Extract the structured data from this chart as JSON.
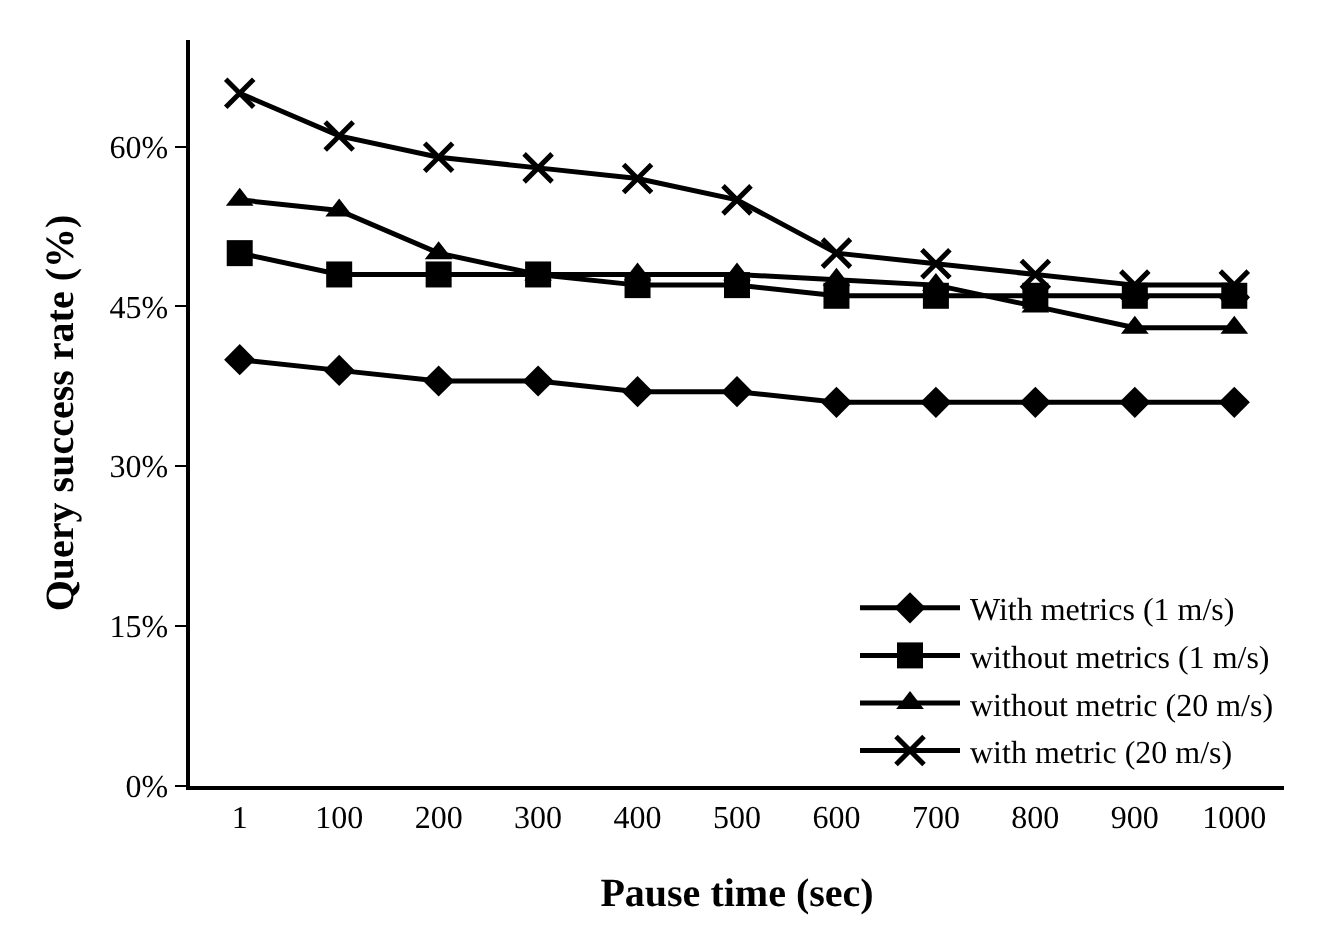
{
  "chart_data": {
    "type": "line",
    "xlabel": "Pause time (sec)",
    "ylabel": "Query success rate (%)",
    "categories": [
      "1",
      "100",
      "200",
      "300",
      "400",
      "500",
      "600",
      "700",
      "800",
      "900",
      "1000"
    ],
    "series": [
      {
        "name": "With metrics (1 m/s)",
        "color": "#000000",
        "marker": "diamond",
        "values": [
          40,
          39,
          38,
          38,
          37,
          37,
          36,
          36,
          36,
          36,
          36
        ]
      },
      {
        "name": "without metrics (1 m/s)",
        "color": "#000000",
        "marker": "square",
        "values": [
          50,
          48,
          48,
          48,
          47,
          47,
          46,
          46,
          46,
          46,
          46
        ]
      },
      {
        "name": "without metric (20 m/s)",
        "color": "#000000",
        "marker": "triangle",
        "values": [
          55,
          54,
          50,
          48,
          48,
          48,
          47.5,
          47,
          45,
          43,
          43
        ]
      },
      {
        "name": "with metric (20 m/s)",
        "color": "#000000",
        "marker": "cross",
        "values": [
          65,
          61,
          59,
          58,
          57,
          55,
          50,
          49,
          48,
          47,
          47
        ]
      }
    ],
    "ylim": [
      0,
      70
    ],
    "yticks": [
      {
        "value": 0,
        "label": "0%"
      },
      {
        "value": 15,
        "label": "15%"
      },
      {
        "value": 30,
        "label": "30%"
      },
      {
        "value": 45,
        "label": "45%"
      },
      {
        "value": 60,
        "label": "60%"
      }
    ],
    "grid": false,
    "legend": "bottom right",
    "line_style": "solid"
  }
}
